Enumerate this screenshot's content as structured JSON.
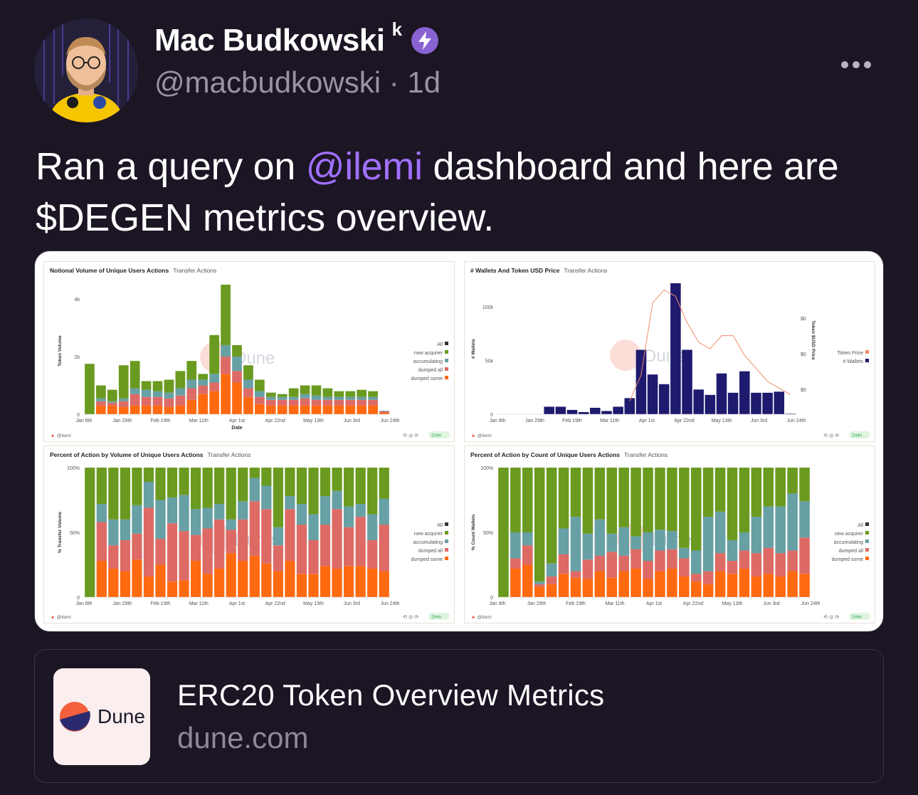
{
  "tweet": {
    "author_name": "Mac Budkowski",
    "author_suffix": "k",
    "handle_line": "@macbudkowski · 1d",
    "text_before": "Ran a query on ",
    "mention": "@ilemi",
    "text_after": " dashboard and here are $DEGEN metrics overview.",
    "verified_color": "#8a63d2",
    "mention_color": "#a070ff"
  },
  "link_card": {
    "title": "ERC20 Token Overview Metrics",
    "domain": "dune.com",
    "logo_text": "Dune"
  },
  "dashboard": {
    "watermark": "Dune",
    "footer_user": "@ilemi",
    "footer_status": "2min",
    "legend_items": [
      "All",
      "new acquirer",
      "accumulating",
      "dumped all",
      "dumped some"
    ],
    "colors": {
      "new acquirer": "#6a9a1f",
      "accumulating": "#67a0a5",
      "dumped all": "#dd6a65",
      "dumped some": "#ff6a10",
      "All": "#333333",
      "wallets": "#1e1a6e",
      "price": "#f08a6a"
    },
    "x_ticks": [
      "Jan 8th",
      "Jan 29th",
      "Feb 19th",
      "Mar 11th",
      "Apr 1st",
      "Apr 22nd",
      "May 13th",
      "Jun 3rd",
      "Jun 24th"
    ]
  },
  "chart_data": [
    {
      "type": "bar",
      "title": "Notional Volume of Unique Users Actions",
      "subtitle": "Transfer Actions",
      "xlabel": "Date",
      "ylabel": "Token Volume",
      "y_ticks": [
        "0",
        "2b",
        "4b"
      ],
      "ylim": [
        0,
        4.4
      ],
      "stacked": true,
      "series": [
        {
          "name": "dumped some",
          "values": [
            0,
            0.3,
            0.3,
            0.25,
            0.3,
            0.3,
            0.3,
            0.25,
            0.3,
            0.5,
            0.7,
            0.8,
            1.4,
            1.1,
            0.6,
            0.35,
            0.3,
            0.3,
            0.3,
            0.3,
            0.3,
            0.3,
            0.3,
            0.3,
            0.3,
            0.3,
            0.05
          ]
        },
        {
          "name": "dumped all",
          "values": [
            0,
            0.15,
            0.1,
            0.2,
            0.4,
            0.3,
            0.3,
            0.3,
            0.35,
            0.4,
            0.3,
            0.3,
            0.6,
            0.4,
            0.3,
            0.25,
            0.2,
            0.2,
            0.2,
            0.25,
            0.2,
            0.2,
            0.2,
            0.2,
            0.2,
            0.2,
            0.05
          ]
        },
        {
          "name": "accumulating",
          "values": [
            0,
            0.1,
            0.05,
            0.1,
            0.2,
            0.25,
            0.2,
            0.2,
            0.25,
            0.3,
            0.2,
            0.3,
            0.4,
            0.5,
            0.3,
            0.2,
            0.1,
            0.1,
            0.1,
            0.15,
            0.15,
            0.1,
            0.1,
            0.1,
            0.1,
            0.1,
            0.02
          ]
        },
        {
          "name": "new acquirer",
          "values": [
            1.75,
            0.45,
            0.4,
            1.15,
            0.95,
            0.3,
            0.35,
            0.45,
            0.6,
            0.65,
            0.2,
            1.35,
            2.1,
            0.4,
            0.5,
            0.4,
            0.15,
            0.1,
            0.3,
            0.3,
            0.35,
            0.3,
            0.2,
            0.2,
            0.25,
            0.2,
            0.0
          ]
        }
      ]
    },
    {
      "type": "bar",
      "title": "# Wallets And Token USD Price",
      "subtitle": "Transfer Actions",
      "ylabel": "# Wallets",
      "y2label": "Token $USD Price",
      "y_ticks": [
        "0",
        "50k",
        "100k"
      ],
      "y2_ticks": [
        "$0",
        "$0",
        "$0"
      ],
      "ylim": [
        0,
        122
      ],
      "legend": [
        "Token Price",
        "# Wallets"
      ],
      "series": [
        {
          "name": "# Wallets",
          "values": [
            0,
            0,
            0,
            0,
            7,
            7,
            4,
            2,
            6,
            3,
            7,
            15,
            60,
            37,
            28,
            122,
            60,
            23,
            18,
            38,
            20,
            40,
            20,
            20,
            21,
            0.5
          ]
        },
        {
          "name": "Token Price",
          "values": [
            null,
            null,
            null,
            null,
            null,
            null,
            null,
            null,
            null,
            null,
            null,
            0.1,
            0.3,
            0.85,
            0.95,
            0.9,
            0.7,
            0.55,
            0.5,
            0.6,
            0.6,
            0.45,
            0.35,
            0.25,
            0.2,
            0.15
          ]
        }
      ]
    },
    {
      "type": "bar",
      "title": "Percent of Action by Volume of Unique Users Actions",
      "subtitle": "Transfer Actions",
      "ylabel": "% Transfer Volume",
      "y_ticks": [
        "0",
        "50%",
        "100%"
      ],
      "ylim": [
        0,
        100
      ],
      "stacked": true,
      "series": [
        {
          "name": "dumped some",
          "values": [
            0,
            28,
            22,
            20,
            29,
            16,
            25,
            12,
            13,
            28,
            18,
            22,
            34,
            28,
            32,
            26,
            20,
            28,
            18,
            18,
            24,
            22,
            24,
            24,
            22,
            20
          ]
        },
        {
          "name": "dumped all",
          "values": [
            0,
            30,
            18,
            24,
            20,
            53,
            20,
            45,
            38,
            20,
            35,
            38,
            18,
            32,
            42,
            42,
            20,
            40,
            38,
            26,
            32,
            46,
            30,
            38,
            22,
            36
          ]
        },
        {
          "name": "accumulating",
          "values": [
            0,
            14,
            20,
            16,
            22,
            20,
            30,
            20,
            28,
            20,
            16,
            12,
            8,
            14,
            18,
            18,
            14,
            10,
            16,
            20,
            22,
            14,
            16,
            10,
            20,
            20
          ]
        },
        {
          "name": "new acquirer",
          "values": [
            100,
            28,
            40,
            40,
            29,
            11,
            25,
            23,
            21,
            32,
            31,
            28,
            40,
            26,
            8,
            14,
            46,
            22,
            28,
            36,
            22,
            18,
            30,
            28,
            36,
            24
          ]
        }
      ]
    },
    {
      "type": "bar",
      "title": "Percent of Action by Count of Unique Users Actions",
      "subtitle": "Transfer Actions",
      "ylabel": "% Count Wallets",
      "y_ticks": [
        "0",
        "50%",
        "100%"
      ],
      "ylim": [
        0,
        100
      ],
      "stacked": true,
      "series": [
        {
          "name": "dumped some",
          "values": [
            0,
            22,
            25,
            8,
            10,
            18,
            15,
            14,
            20,
            15,
            20,
            22,
            14,
            20,
            22,
            16,
            12,
            10,
            20,
            18,
            22,
            16,
            18,
            16,
            20,
            18
          ]
        },
        {
          "name": "dumped all",
          "values": [
            0,
            8,
            15,
            2,
            6,
            15,
            5,
            15,
            12,
            20,
            12,
            15,
            14,
            16,
            15,
            14,
            6,
            10,
            14,
            10,
            14,
            18,
            20,
            18,
            16,
            28
          ]
        },
        {
          "name": "accumulating",
          "values": [
            0,
            20,
            10,
            2,
            10,
            20,
            42,
            20,
            28,
            14,
            22,
            10,
            22,
            16,
            14,
            8,
            18,
            42,
            32,
            16,
            14,
            28,
            32,
            36,
            44,
            28
          ]
        },
        {
          "name": "new acquirer",
          "values": [
            100,
            50,
            50,
            88,
            74,
            47,
            38,
            51,
            40,
            51,
            46,
            53,
            50,
            48,
            49,
            62,
            64,
            38,
            34,
            56,
            50,
            38,
            30,
            30,
            20,
            26
          ]
        }
      ]
    }
  ]
}
